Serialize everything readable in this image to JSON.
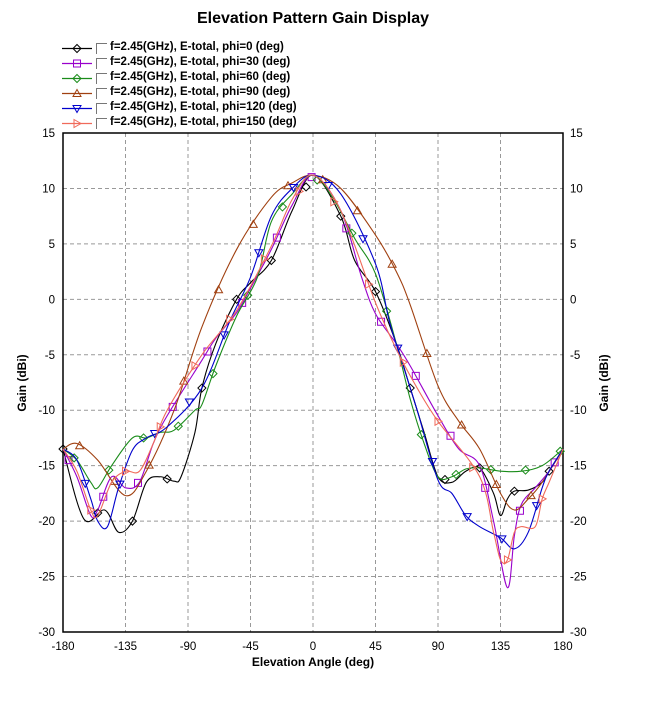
{
  "chart_data": {
    "type": "line",
    "title": "Elevation Pattern Gain Display",
    "xlabel": "Elevation Angle (deg)",
    "ylabel": "Gain (dBi)",
    "xlim": [
      -180,
      180
    ],
    "ylim": [
      -30,
      15
    ],
    "xticks": [
      -180,
      -135,
      -90,
      -45,
      0,
      45,
      90,
      135,
      180
    ],
    "yticks": [
      15,
      10,
      5,
      0,
      -5,
      -10,
      -15,
      -20,
      -25,
      -30
    ],
    "grid": true,
    "legend_position": "top-left, above plot",
    "series": [
      {
        "name": "f=2.45(GHz), E-total, phi=0 (deg)",
        "color": "#000000",
        "marker": "diamond",
        "points": [
          [
            -180,
            -13.5
          ],
          [
            -165,
            -19.8
          ],
          [
            -150,
            -19
          ],
          [
            -140,
            -21
          ],
          [
            -130,
            -20
          ],
          [
            -120,
            -16.5
          ],
          [
            -110,
            -16
          ],
          [
            -100,
            -16.4
          ],
          [
            -95,
            -16
          ],
          [
            -85,
            -12
          ],
          [
            -80,
            -8
          ],
          [
            -70,
            -4
          ],
          [
            -55,
            0
          ],
          [
            -45,
            1.5
          ],
          [
            -30,
            3.5
          ],
          [
            -15,
            8
          ],
          [
            0,
            11.2
          ],
          [
            20,
            7.5
          ],
          [
            30,
            3.5
          ],
          [
            45,
            0.7
          ],
          [
            60,
            -4
          ],
          [
            70,
            -8
          ],
          [
            80,
            -12
          ],
          [
            90,
            -16
          ],
          [
            100,
            -16.5
          ],
          [
            110,
            -15.5
          ],
          [
            120,
            -15.2
          ],
          [
            130,
            -17.5
          ],
          [
            135,
            -19.5
          ],
          [
            140,
            -18
          ],
          [
            145,
            -17.3
          ],
          [
            155,
            -17.2
          ],
          [
            165,
            -16.5
          ],
          [
            170,
            -15.5
          ],
          [
            180,
            -13.5
          ]
        ]
      },
      {
        "name": "f=2.45(GHz), E-total, phi=30 (deg)",
        "color": "#9900cc",
        "marker": "square",
        "points": [
          [
            -180,
            -13.5
          ],
          [
            -170,
            -16
          ],
          [
            -160,
            -19.5
          ],
          [
            -155,
            -19
          ],
          [
            -145,
            -16
          ],
          [
            -135,
            -17
          ],
          [
            -125,
            -16.5
          ],
          [
            -115,
            -13
          ],
          [
            -105,
            -10.5
          ],
          [
            -80,
            -5.5
          ],
          [
            -70,
            -3.5
          ],
          [
            -55,
            -1.2
          ],
          [
            -45,
            1
          ],
          [
            -30,
            4.5
          ],
          [
            -15,
            8.5
          ],
          [
            0,
            11.2
          ],
          [
            20,
            8
          ],
          [
            35,
            2
          ],
          [
            45,
            -1.3
          ],
          [
            60,
            -4
          ],
          [
            70,
            -6
          ],
          [
            90,
            -10.5
          ],
          [
            105,
            -13.5
          ],
          [
            120,
            -15
          ],
          [
            130,
            -20
          ],
          [
            140,
            -26
          ],
          [
            145,
            -21.3
          ],
          [
            150,
            -18.5
          ],
          [
            160,
            -17
          ],
          [
            170,
            -15.5
          ],
          [
            180,
            -13.5
          ]
        ]
      },
      {
        "name": "f=2.45(GHz), E-total, phi=60 (deg)",
        "color": "#1a8c1a",
        "marker": "diamond",
        "points": [
          [
            -180,
            -13.5
          ],
          [
            -170,
            -14.5
          ],
          [
            -160,
            -16.5
          ],
          [
            -155,
            -17
          ],
          [
            -145,
            -15
          ],
          [
            -130,
            -12.5
          ],
          [
            -120,
            -12.5
          ],
          [
            -110,
            -12
          ],
          [
            -100,
            -11.8
          ],
          [
            -85,
            -10
          ],
          [
            -80,
            -9.5
          ],
          [
            -70,
            -6
          ],
          [
            -55,
            -1.5
          ],
          [
            -40,
            2
          ],
          [
            -30,
            7
          ],
          [
            -15,
            9.5
          ],
          [
            0,
            11.2
          ],
          [
            15,
            9
          ],
          [
            30,
            5.5
          ],
          [
            45,
            2.3
          ],
          [
            60,
            -4
          ],
          [
            70,
            -9
          ],
          [
            80,
            -13
          ],
          [
            90,
            -16
          ],
          [
            100,
            -16
          ],
          [
            110,
            -15.3
          ],
          [
            120,
            -15.2
          ],
          [
            135,
            -15.5
          ],
          [
            150,
            -15.5
          ],
          [
            165,
            -15
          ],
          [
            180,
            -13.5
          ]
        ]
      },
      {
        "name": "f=2.45(GHz), E-total, phi=90 (deg)",
        "color": "#a04010",
        "marker": "triangle-up",
        "points": [
          [
            -180,
            -13.5
          ],
          [
            -170,
            -13
          ],
          [
            -155,
            -14.5
          ],
          [
            -135,
            -17.7
          ],
          [
            -120,
            -15.5
          ],
          [
            -100,
            -10
          ],
          [
            -80,
            -2.5
          ],
          [
            -55,
            4.5
          ],
          [
            -30,
            9.2
          ],
          [
            -15,
            10.5
          ],
          [
            0,
            11.2
          ],
          [
            20,
            10
          ],
          [
            45,
            5.8
          ],
          [
            60,
            2.5
          ],
          [
            70,
            -0.5
          ],
          [
            90,
            -7.8
          ],
          [
            105,
            -11
          ],
          [
            120,
            -13.5
          ],
          [
            135,
            -17.5
          ],
          [
            145,
            -19
          ],
          [
            155,
            -18
          ],
          [
            165,
            -16.5
          ],
          [
            180,
            -13.5
          ]
        ]
      },
      {
        "name": "f=2.45(GHz), E-total, phi=120 (deg)",
        "color": "#0000cc",
        "marker": "triangle-down",
        "points": [
          [
            -180,
            -13.5
          ],
          [
            -170,
            -14.5
          ],
          [
            -160,
            -18
          ],
          [
            -155,
            -20
          ],
          [
            -148,
            -20.5
          ],
          [
            -140,
            -17
          ],
          [
            -130,
            -13.6
          ],
          [
            -120,
            -12.5
          ],
          [
            -105,
            -11.5
          ],
          [
            -80,
            -8
          ],
          [
            -60,
            -2
          ],
          [
            -45,
            2
          ],
          [
            -30,
            7.5
          ],
          [
            -15,
            10
          ],
          [
            0,
            11.2
          ],
          [
            20,
            9.5
          ],
          [
            45,
            3.2
          ],
          [
            55,
            -2
          ],
          [
            65,
            -6
          ],
          [
            75,
            -10
          ],
          [
            90,
            -16.3
          ],
          [
            100,
            -17.5
          ],
          [
            110,
            -19.5
          ],
          [
            120,
            -20.5
          ],
          [
            135,
            -21.5
          ],
          [
            145,
            -22.5
          ],
          [
            155,
            -21
          ],
          [
            165,
            -17
          ],
          [
            170,
            -15.5
          ],
          [
            180,
            -13.5
          ]
        ]
      },
      {
        "name": "f=2.45(GHz), E-total, phi=150 (deg)",
        "color": "#f06a5a",
        "marker": "triangle-right",
        "points": [
          [
            -180,
            -13.5
          ],
          [
            -170,
            -15.5
          ],
          [
            -160,
            -19
          ],
          [
            -155,
            -19.5
          ],
          [
            -145,
            -16.5
          ],
          [
            -135,
            -15.5
          ],
          [
            -125,
            -15.5
          ],
          [
            -115,
            -13
          ],
          [
            -105,
            -10
          ],
          [
            -80,
            -5
          ],
          [
            -55,
            -1
          ],
          [
            -30,
            4.8
          ],
          [
            -15,
            9
          ],
          [
            0,
            11.2
          ],
          [
            20,
            8
          ],
          [
            45,
            -0.3
          ],
          [
            60,
            -4.5
          ],
          [
            75,
            -8
          ],
          [
            90,
            -11
          ],
          [
            120,
            -16
          ],
          [
            130,
            -21
          ],
          [
            135,
            -23.5
          ],
          [
            140,
            -23.5
          ],
          [
            145,
            -21
          ],
          [
            150,
            -20.5
          ],
          [
            160,
            -20.5
          ],
          [
            165,
            -18
          ],
          [
            170,
            -16.5
          ],
          [
            180,
            -13.5
          ]
        ]
      }
    ]
  }
}
